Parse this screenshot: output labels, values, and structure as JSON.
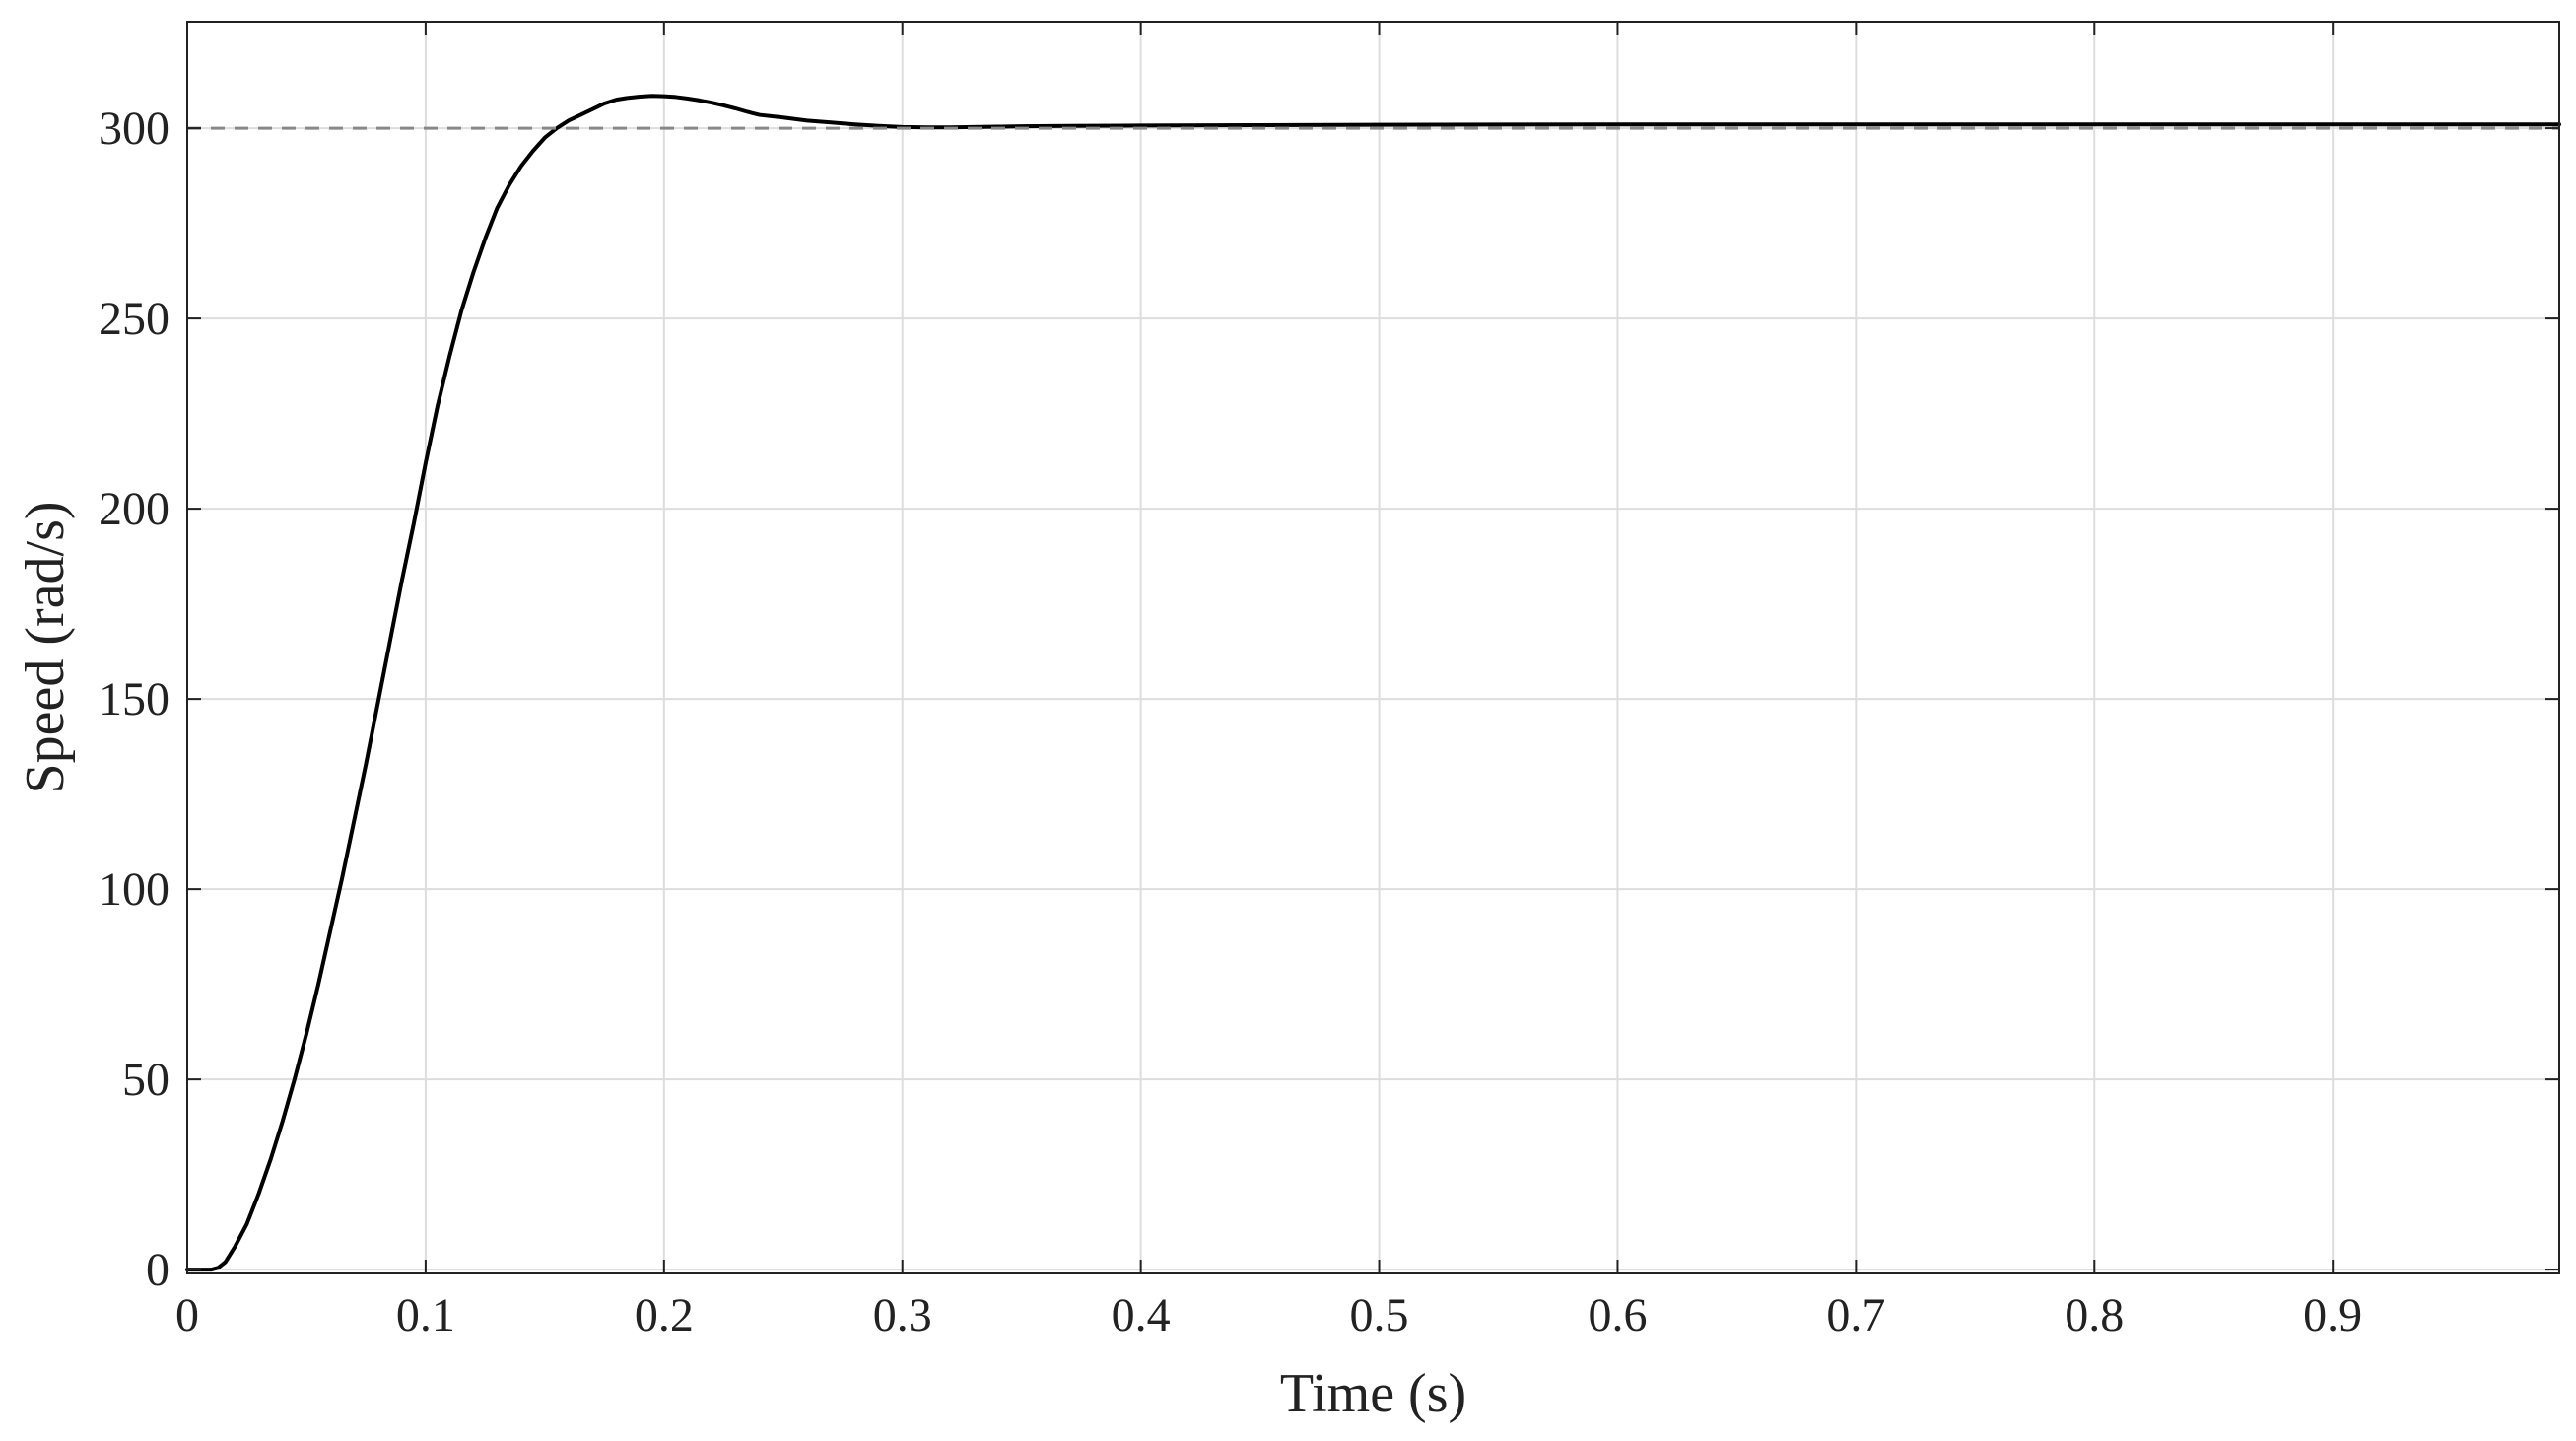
{
  "chart_data": {
    "type": "line",
    "title": "",
    "xlabel": "Time (s)",
    "ylabel": "Speed (rad/s)",
    "xlim": [
      0,
      0.995
    ],
    "ylim": [
      -1,
      328
    ],
    "grid": true,
    "legend": "none",
    "x_ticks": [
      0,
      0.1,
      0.2,
      0.3,
      0.4,
      0.5,
      0.6,
      0.7,
      0.8,
      0.9
    ],
    "x_tick_labels": [
      "0",
      "0.1",
      "0.2",
      "0.3",
      "0.4",
      "0.5",
      "0.6",
      "0.7",
      "0.8",
      "0.9"
    ],
    "y_ticks": [
      0,
      50,
      100,
      150,
      200,
      250,
      300
    ],
    "y_tick_labels": [
      "0",
      "50",
      "100",
      "150",
      "200",
      "250",
      "300"
    ],
    "series": [
      {
        "style": "solid",
        "color": "#000000",
        "x": [
          0,
          0.005,
          0.01,
          0.013,
          0.016,
          0.02,
          0.025,
          0.03,
          0.035,
          0.04,
          0.045,
          0.05,
          0.055,
          0.06,
          0.065,
          0.07,
          0.075,
          0.08,
          0.085,
          0.09,
          0.095,
          0.1,
          0.105,
          0.11,
          0.115,
          0.12,
          0.125,
          0.13,
          0.135,
          0.14,
          0.145,
          0.15,
          0.155,
          0.16,
          0.165,
          0.17,
          0.175,
          0.18,
          0.185,
          0.19,
          0.195,
          0.2,
          0.205,
          0.21,
          0.215,
          0.22,
          0.225,
          0.23,
          0.235,
          0.24,
          0.25,
          0.26,
          0.27,
          0.28,
          0.29,
          0.3,
          0.31,
          0.32,
          0.33,
          0.34,
          0.35,
          0.37,
          0.4,
          0.45,
          0.5,
          0.6,
          0.7,
          0.8,
          0.9,
          0.995
        ],
        "y": [
          0,
          0,
          0,
          0.5,
          2,
          6,
          12,
          20,
          29,
          39,
          50,
          62,
          75,
          89,
          103,
          118,
          133,
          149,
          165,
          181,
          196,
          212,
          227,
          240,
          252,
          262,
          271,
          279,
          285,
          290,
          294,
          297.5,
          300,
          302,
          303.5,
          305,
          306.5,
          307.5,
          308,
          308.3,
          308.5,
          308.4,
          308.2,
          307.8,
          307.3,
          306.7,
          306,
          305.2,
          304.3,
          303.5,
          302.8,
          302,
          301.5,
          301,
          300.6,
          300.3,
          300.2,
          300.2,
          300.3,
          300.4,
          300.5,
          300.6,
          300.7,
          300.8,
          300.9,
          301,
          301,
          301,
          301,
          301
        ]
      },
      {
        "style": "dashed",
        "color": "#888888",
        "x": [
          0,
          0.995
        ],
        "y": [
          300,
          300
        ]
      }
    ]
  }
}
